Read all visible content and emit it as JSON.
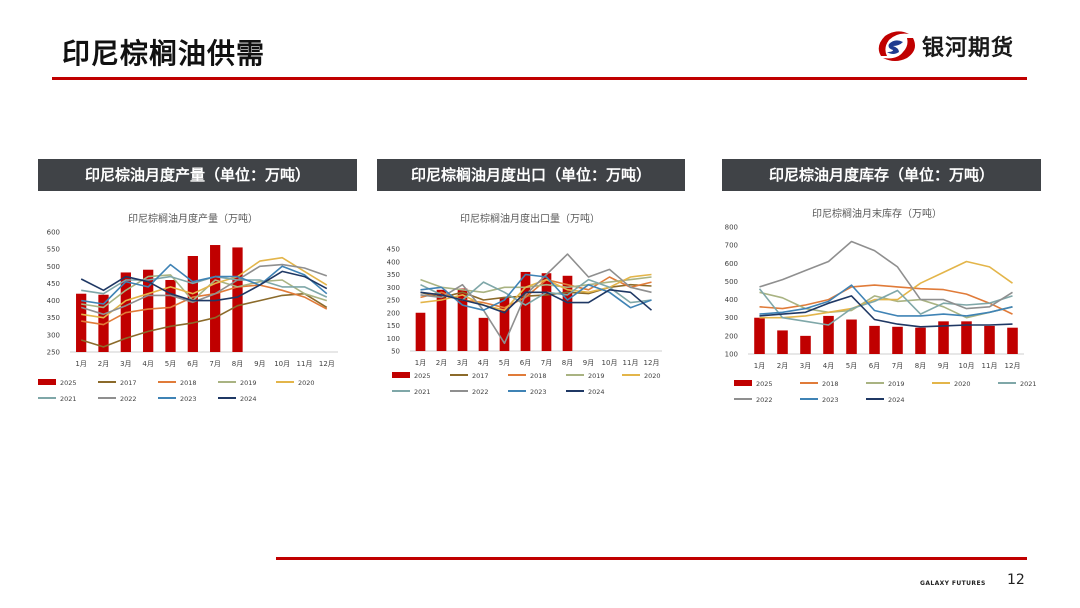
{
  "page": {
    "title": "印尼棕榈油供需",
    "logo_text": "银河期货",
    "footer_brand": "GALAXY FUTURES",
    "page_number": "12",
    "colors": {
      "accent": "#c00000",
      "panel_header": "#404347"
    }
  },
  "panels": [
    {
      "header": "印尼棕油月度产量（单位：万吨）"
    },
    {
      "header": "印尼棕榈油月度出口（单位：万吨）"
    },
    {
      "header": "印尼棕油月度库存（单位：万吨）"
    }
  ],
  "chart_data": [
    {
      "type": "bar+line",
      "title": "印尼棕榈油月度产量（万吨）",
      "categories": [
        "1月",
        "2月",
        "3月",
        "4月",
        "5月",
        "6月",
        "7月",
        "8月",
        "9月",
        "10月",
        "11月",
        "12月"
      ],
      "ylim": [
        250,
        600
      ],
      "yticks": [
        250,
        300,
        350,
        400,
        450,
        500,
        550,
        600
      ],
      "bar_series": {
        "name": "2025",
        "color": "#c00000",
        "values": [
          420,
          417,
          482,
          490,
          460,
          530,
          562,
          555,
          null,
          null,
          null,
          null
        ]
      },
      "series": [
        {
          "name": "2017",
          "color": "#8b6a2a",
          "values": [
            285,
            265,
            290,
            310,
            325,
            335,
            350,
            385,
            400,
            415,
            420,
            380
          ]
        },
        {
          "name": "2018",
          "color": "#e07b39",
          "values": [
            340,
            330,
            365,
            375,
            380,
            410,
            420,
            440,
            445,
            430,
            410,
            375
          ]
        },
        {
          "name": "2019",
          "color": "#a9b382",
          "values": [
            390,
            380,
            430,
            470,
            475,
            400,
            460,
            440,
            455,
            460,
            420,
            400
          ]
        },
        {
          "name": "2020",
          "color": "#e3b54a",
          "values": [
            360,
            350,
            400,
            420,
            440,
            420,
            450,
            470,
            515,
            525,
            485,
            445
          ]
        },
        {
          "name": "2021",
          "color": "#7fa7a8",
          "values": [
            430,
            420,
            460,
            460,
            470,
            450,
            470,
            460,
            460,
            440,
            440,
            410
          ]
        },
        {
          "name": "2022",
          "color": "#8f8f8f",
          "values": [
            380,
            360,
            385,
            415,
            415,
            395,
            420,
            460,
            500,
            505,
            495,
            472
          ]
        },
        {
          "name": "2023",
          "color": "#3f83b5",
          "values": [
            400,
            390,
            455,
            440,
            505,
            455,
            470,
            470,
            445,
            500,
            475,
            420
          ]
        },
        {
          "name": "2024",
          "color": "#1f3864",
          "values": [
            463,
            430,
            470,
            455,
            420,
            400,
            400,
            410,
            445,
            485,
            470,
            435
          ]
        }
      ]
    },
    {
      "type": "bar+line",
      "title": "印尼棕榈油月度出口量（万吨）",
      "categories": [
        "1月",
        "2月",
        "3月",
        "4月",
        "5月",
        "6月",
        "7月",
        "8月",
        "9月",
        "10月",
        "11月",
        "12月"
      ],
      "ylim": [
        50,
        450
      ],
      "yticks": [
        50,
        100,
        150,
        200,
        250,
        300,
        350,
        400,
        450
      ],
      "bar_series": {
        "name": "2025",
        "color": "#c00000",
        "values": [
          200,
          290,
          295,
          180,
          260,
          360,
          355,
          345,
          null,
          null,
          null,
          null
        ]
      },
      "series": [
        {
          "name": "2017",
          "color": "#8b6a2a",
          "values": [
            280,
            260,
            280,
            250,
            260,
            265,
            270,
            280,
            275,
            300,
            310,
            305
          ]
        },
        {
          "name": "2018",
          "color": "#e07b39",
          "values": [
            260,
            280,
            250,
            240,
            220,
            260,
            330,
            310,
            290,
            340,
            300,
            320
          ]
        },
        {
          "name": "2019",
          "color": "#a9b382",
          "values": [
            330,
            300,
            290,
            280,
            300,
            300,
            310,
            300,
            310,
            320,
            330,
            340
          ]
        },
        {
          "name": "2020",
          "color": "#e3b54a",
          "values": [
            240,
            250,
            270,
            230,
            210,
            300,
            330,
            290,
            280,
            300,
            340,
            350
          ]
        },
        {
          "name": "2021",
          "color": "#7fa7a8",
          "values": [
            310,
            270,
            250,
            320,
            280,
            230,
            280,
            270,
            330,
            300,
            240,
            250
          ]
        },
        {
          "name": "2022",
          "color": "#8f8f8f",
          "values": [
            270,
            260,
            310,
            210,
            80,
            270,
            350,
            430,
            340,
            370,
            300,
            280
          ]
        },
        {
          "name": "2023",
          "color": "#3f83b5",
          "values": [
            290,
            300,
            230,
            210,
            250,
            350,
            340,
            250,
            310,
            280,
            220,
            250
          ]
        },
        {
          "name": "2024",
          "color": "#1f3864",
          "values": [
            280,
            270,
            250,
            230,
            200,
            280,
            280,
            240,
            240,
            290,
            280,
            210
          ]
        }
      ]
    },
    {
      "type": "bar+line",
      "title": "印尼棕榈油月末库存（万吨）",
      "categories": [
        "1月",
        "2月",
        "3月",
        "4月",
        "5月",
        "6月",
        "7月",
        "8月",
        "9月",
        "10月",
        "11月",
        "12月"
      ],
      "ylim": [
        100,
        800
      ],
      "yticks": [
        100,
        200,
        300,
        400,
        500,
        600,
        700,
        800
      ],
      "bar_series": {
        "name": "2025",
        "color": "#c00000",
        "values": [
          300,
          230,
          200,
          310,
          290,
          255,
          250,
          245,
          280,
          280,
          255,
          245
        ]
      },
      "series": [
        {
          "name": "2018",
          "color": "#e07b39",
          "values": [
            360,
            350,
            370,
            400,
            470,
            480,
            470,
            460,
            455,
            430,
            380,
            320
          ]
        },
        {
          "name": "2019",
          "color": "#a9b382",
          "values": [
            440,
            410,
            350,
            330,
            340,
            420,
            390,
            400,
            360,
            300,
            330,
            360
          ]
        },
        {
          "name": "2020",
          "color": "#e3b54a",
          "values": [
            300,
            300,
            310,
            330,
            350,
            400,
            400,
            490,
            550,
            610,
            580,
            490
          ]
        },
        {
          "name": "2021",
          "color": "#7fa7a8",
          "values": [
            460,
            300,
            280,
            260,
            350,
            390,
            450,
            320,
            380,
            370,
            380,
            420
          ]
        },
        {
          "name": "2022",
          "color": "#8f8f8f",
          "values": [
            470,
            510,
            560,
            610,
            720,
            670,
            580,
            400,
            400,
            350,
            360,
            440
          ]
        },
        {
          "name": "2023",
          "color": "#3f83b5",
          "values": [
            320,
            330,
            350,
            390,
            480,
            340,
            310,
            310,
            320,
            310,
            330,
            360
          ]
        },
        {
          "name": "2024",
          "color": "#1f3864",
          "values": [
            310,
            320,
            330,
            380,
            420,
            290,
            265,
            250,
            255,
            260,
            260,
            265
          ]
        }
      ]
    }
  ]
}
